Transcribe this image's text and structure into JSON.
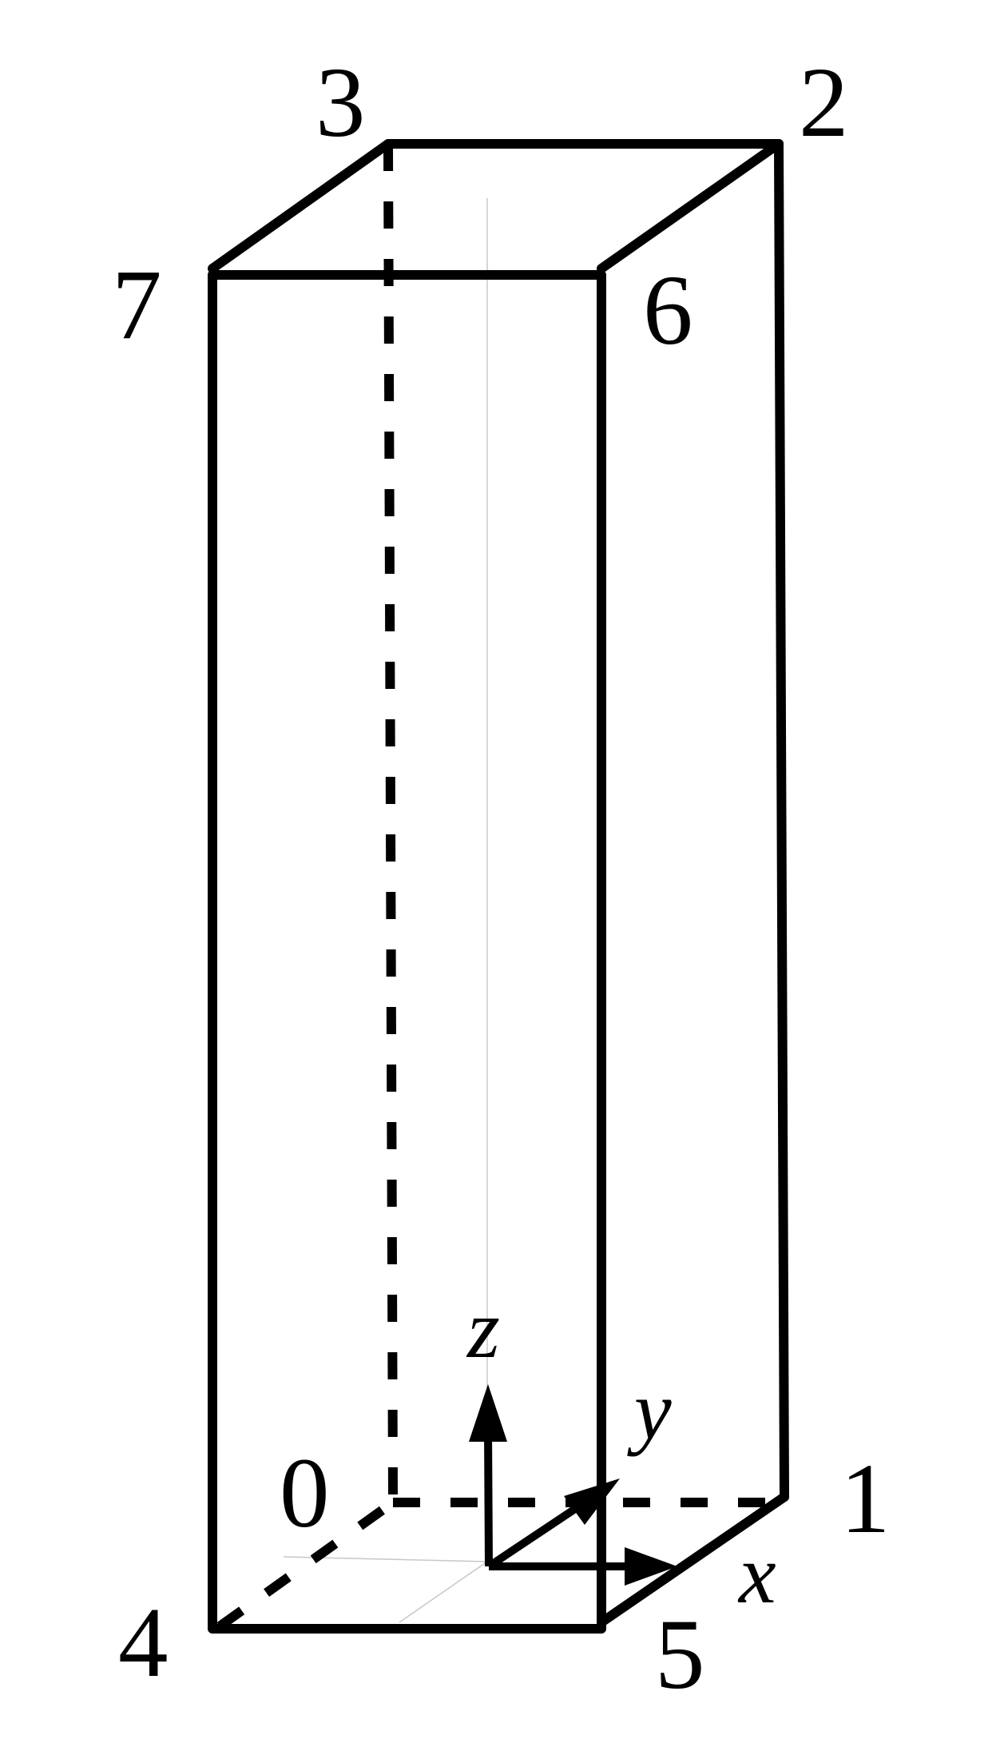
{
  "corners": {
    "c0": "0",
    "c1": "1",
    "c2": "2",
    "c3": "3",
    "c4": "4",
    "c5": "5",
    "c6": "6",
    "c7": "7"
  },
  "axes": {
    "x": "x",
    "y": "y",
    "z": "z"
  }
}
